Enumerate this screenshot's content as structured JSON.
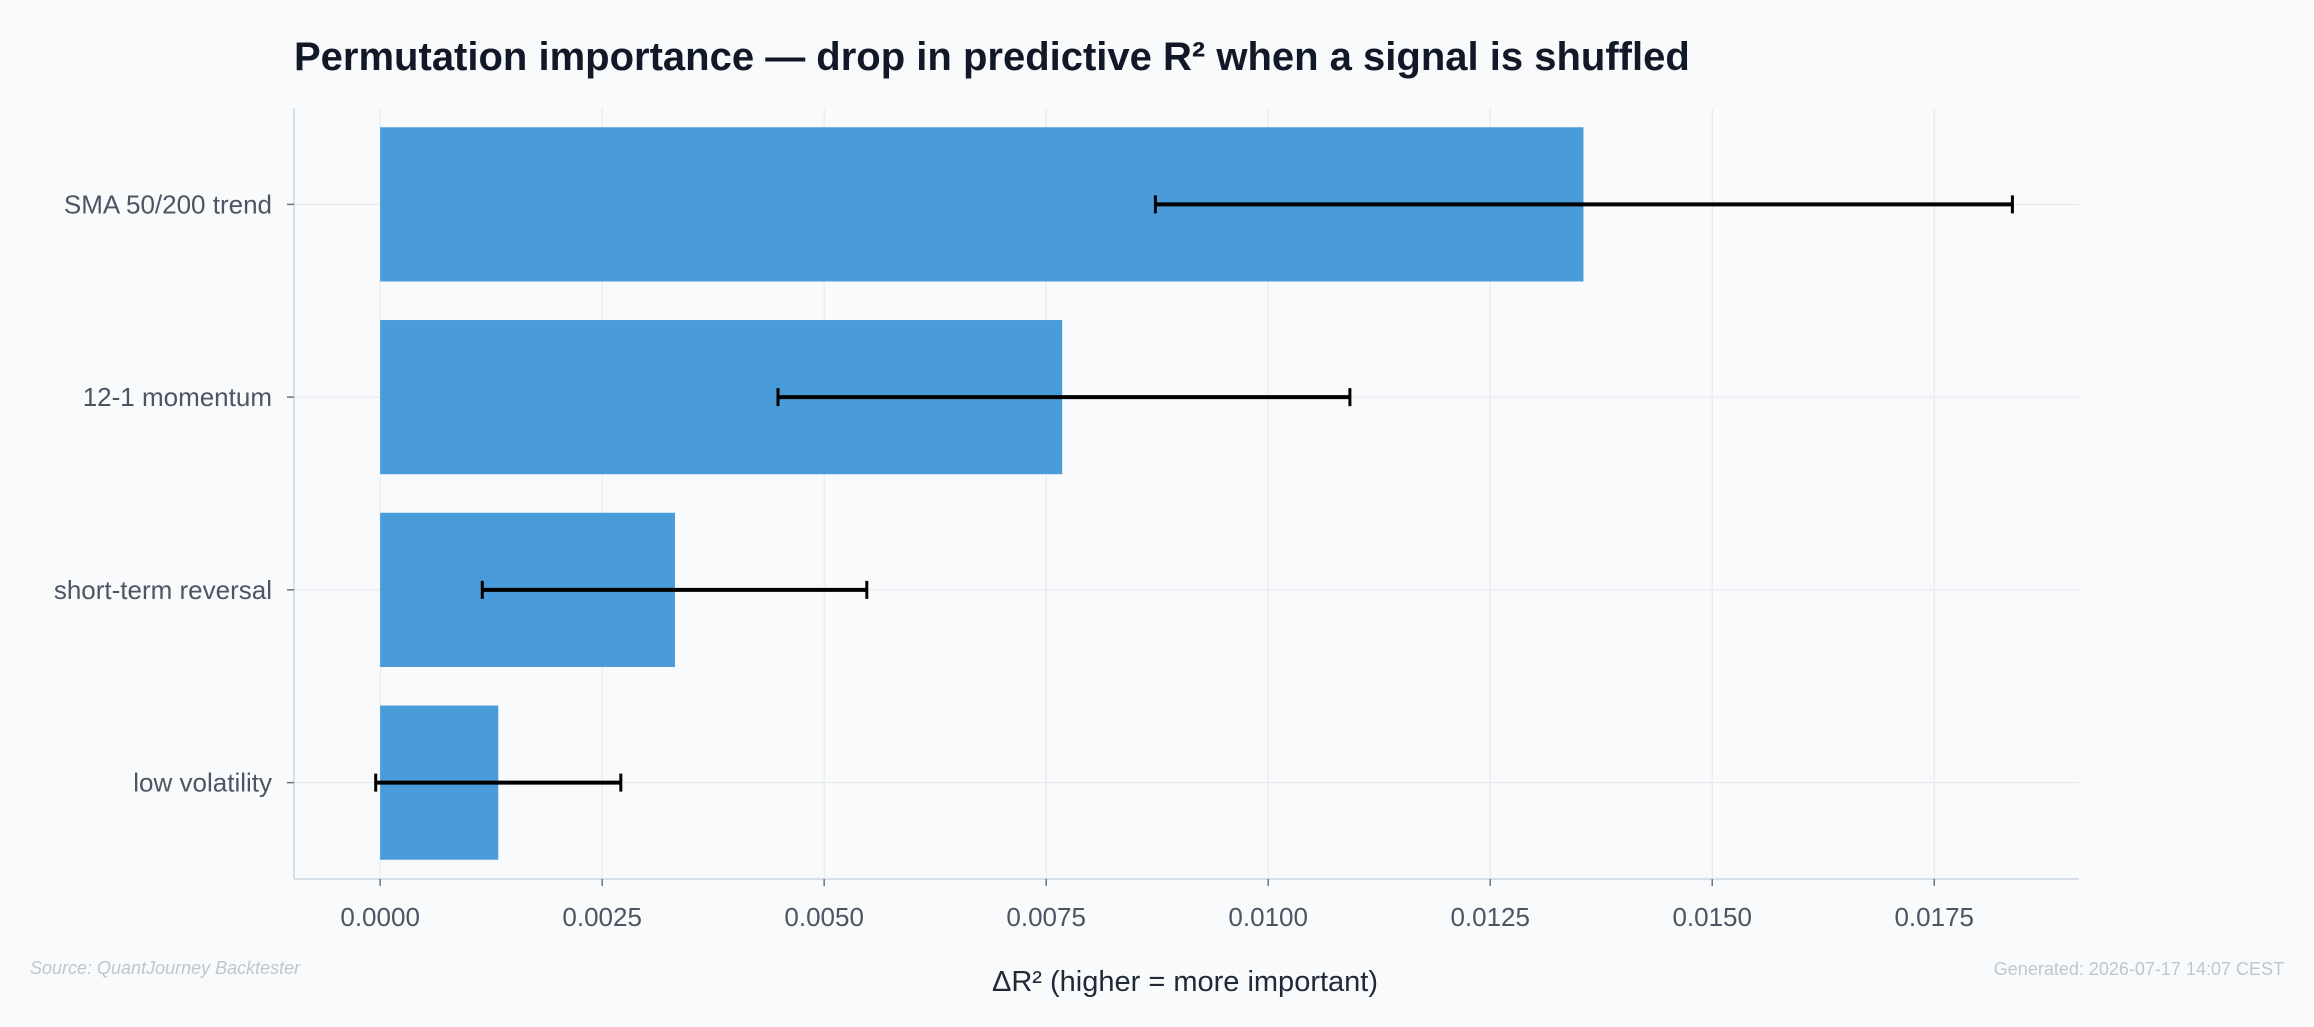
{
  "chart_data": {
    "type": "bar",
    "orientation": "horizontal",
    "title": "Permutation importance — drop in predictive R² when a signal is shuffled",
    "xlabel": "ΔR² (higher = more important)",
    "ylabel": "",
    "categories": [
      "SMA 50/200 trend",
      "12-1 momentum",
      "short-term reversal",
      "low volatility"
    ],
    "values": [
      0.01355,
      0.00768,
      0.00332,
      0.00133
    ],
    "error_low": [
      0.00873,
      0.00448,
      0.00115,
      -5e-05
    ],
    "error_high": [
      0.01838,
      0.01092,
      0.00548,
      0.00271
    ],
    "xlim": [
      -0.00097,
      0.01913
    ],
    "xticks": [
      "0.0000",
      "0.0025",
      "0.0050",
      "0.0075",
      "0.0100",
      "0.0125",
      "0.0150",
      "0.0175"
    ],
    "xtick_values": [
      0,
      0.0025,
      0.005,
      0.0075,
      0.01,
      0.0125,
      0.015,
      0.0175
    ],
    "grid": true,
    "bar_color": "#4a9bd9",
    "errorbar_color": "#000000",
    "grid_color": "#e5e7eb",
    "axis_color": "#cbd5e1"
  },
  "footer": {
    "source": "Source: QuantJourney Backtester",
    "generated": "Generated: 2026-07-17 14:07 CEST"
  }
}
